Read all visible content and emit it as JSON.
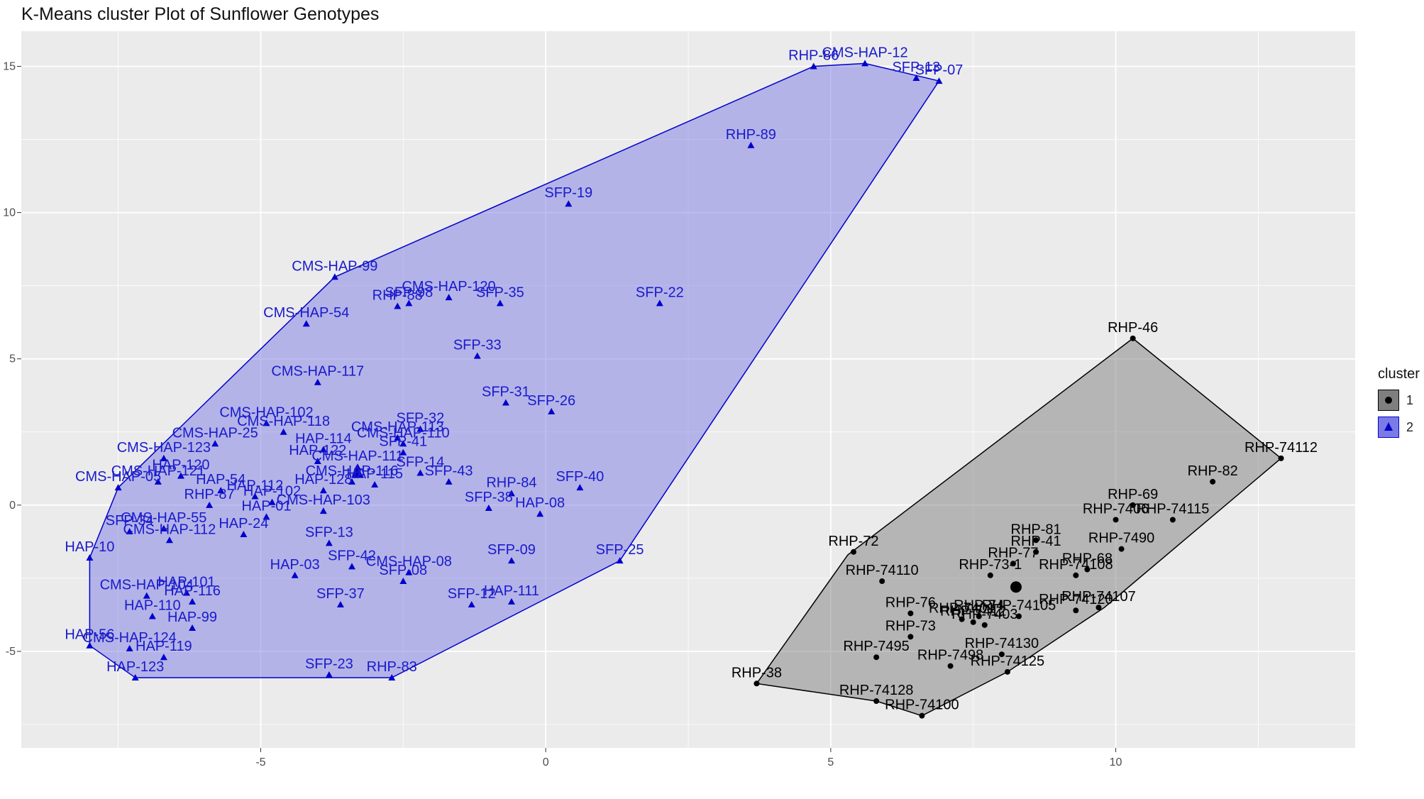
{
  "chart_data": {
    "type": "scatter",
    "title": "K-Means cluster Plot of Sunflower Genotypes",
    "xlabel": "",
    "ylabel": "",
    "xlim": [
      -9.2,
      14.2
    ],
    "ylim": [
      -8.3,
      16.2
    ],
    "x_ticks": [
      -5,
      0,
      5,
      10
    ],
    "y_ticks": [
      -5,
      0,
      5,
      10,
      15
    ],
    "grid": true,
    "legend_title": "cluster",
    "legend_position": "right",
    "series": [
      {
        "name": "1",
        "marker": "circle",
        "color": "#000000",
        "fill": "#7f7f7f",
        "label_color": "#000000",
        "hull": [
          [
            10.3,
            5.7
          ],
          [
            12.9,
            1.6
          ],
          [
            9.8,
            -3.5
          ],
          [
            8.1,
            -5.7
          ],
          [
            6.6,
            -7.2
          ],
          [
            5.8,
            -6.7
          ],
          [
            3.7,
            -6.1
          ],
          [
            5.3,
            -1.7
          ]
        ],
        "points": [
          {
            "label": "RHP-46",
            "x": 10.3,
            "y": 5.7
          },
          {
            "label": "RHP-74112",
            "x": 12.9,
            "y": 1.6
          },
          {
            "label": "RHP-82",
            "x": 11.7,
            "y": 0.8
          },
          {
            "label": "RHP-69",
            "x": 10.3,
            "y": 0.0
          },
          {
            "label": "RHP-7406",
            "x": 10.0,
            "y": -0.5
          },
          {
            "label": "RHP-74115",
            "x": 11.0,
            "y": -0.5
          },
          {
            "label": "RHP-7490",
            "x": 10.1,
            "y": -1.5
          },
          {
            "label": "RHP-81",
            "x": 8.6,
            "y": -1.2
          },
          {
            "label": "RHP-41",
            "x": 8.6,
            "y": -1.6
          },
          {
            "label": "RHP-77",
            "x": 8.2,
            "y": -2.0
          },
          {
            "label": "RHP-73-1",
            "x": 7.8,
            "y": -2.4
          },
          {
            "label": "RHP-68",
            "x": 9.5,
            "y": -2.2
          },
          {
            "label": "RHP-74108",
            "x": 9.3,
            "y": -2.4
          },
          {
            "label": "RHP-72",
            "x": 5.4,
            "y": -1.6
          },
          {
            "label": "RHP-74110",
            "x": 5.9,
            "y": -2.6
          },
          {
            "label": "RHP-74107",
            "x": 9.7,
            "y": -3.5
          },
          {
            "label": "RHP-74120",
            "x": 9.3,
            "y": -3.6
          },
          {
            "label": "RHP-74105",
            "x": 8.3,
            "y": -3.8
          },
          {
            "label": "RHP-76",
            "x": 6.4,
            "y": -3.7
          },
          {
            "label": "RHP-7401",
            "x": 7.3,
            "y": -3.9
          },
          {
            "label": "RHP-7412",
            "x": 7.5,
            "y": -4.0
          },
          {
            "label": "RHP-74",
            "x": 7.6,
            "y": -3.8
          },
          {
            "label": "RHP-7403",
            "x": 7.7,
            "y": -4.1
          },
          {
            "label": "RHP-73",
            "x": 6.4,
            "y": -4.5
          },
          {
            "label": "RHP-7495",
            "x": 5.8,
            "y": -5.2
          },
          {
            "label": "RHP-7498",
            "x": 7.1,
            "y": -5.5
          },
          {
            "label": "RHP-74130",
            "x": 8.0,
            "y": -5.1
          },
          {
            "label": "RHP-74125",
            "x": 8.1,
            "y": -5.7
          },
          {
            "label": "RHP-38",
            "x": 3.7,
            "y": -6.1
          },
          {
            "label": "RHP-74128",
            "x": 5.8,
            "y": -6.7
          },
          {
            "label": "RHP-74100",
            "x": 6.6,
            "y": -7.2
          }
        ]
      },
      {
        "name": "2",
        "marker": "triangle",
        "color": "#0000cc",
        "fill": "#7b7be6",
        "label_color": "#1a1acc",
        "hull": [
          [
            4.7,
            15.0
          ],
          [
            5.6,
            15.1
          ],
          [
            6.9,
            14.5
          ],
          [
            1.3,
            -1.9
          ],
          [
            -2.7,
            -5.9
          ],
          [
            -7.2,
            -5.9
          ],
          [
            -8.0,
            -4.8
          ],
          [
            -8.0,
            -1.8
          ],
          [
            -7.5,
            0.6
          ],
          [
            -3.7,
            7.8
          ]
        ],
        "points": [
          {
            "label": "RHP-86",
            "x": 4.7,
            "y": 15.0
          },
          {
            "label": "CMS-HAP-12",
            "x": 5.6,
            "y": 15.1
          },
          {
            "label": "SFP-13",
            "x": 6.5,
            "y": 14.6
          },
          {
            "label": "SFP-07",
            "x": 6.9,
            "y": 14.5
          },
          {
            "label": "RHP-89",
            "x": 3.6,
            "y": 12.3
          },
          {
            "label": "SFP-19",
            "x": 0.4,
            "y": 10.3
          },
          {
            "label": "CMS-HAP-99",
            "x": -3.7,
            "y": 7.8
          },
          {
            "label": "RHP-88",
            "x": -2.6,
            "y": 6.8
          },
          {
            "label": "SFP-98",
            "x": -2.4,
            "y": 6.9
          },
          {
            "label": "CMS-HAP-120",
            "x": -1.7,
            "y": 7.1
          },
          {
            "label": "SFP-35",
            "x": -0.8,
            "y": 6.9
          },
          {
            "label": "SFP-22",
            "x": 2.0,
            "y": 6.9
          },
          {
            "label": "CMS-HAP-54",
            "x": -4.2,
            "y": 6.2
          },
          {
            "label": "SFP-33",
            "x": -1.2,
            "y": 5.1
          },
          {
            "label": "CMS-HAP-117",
            "x": -4.0,
            "y": 4.2
          },
          {
            "label": "SFP-31",
            "x": -0.7,
            "y": 3.5
          },
          {
            "label": "SFP-26",
            "x": 0.1,
            "y": 3.2
          },
          {
            "label": "CMS-HAP-102",
            "x": -4.9,
            "y": 2.8
          },
          {
            "label": "CMS-HAP-118",
            "x": -4.6,
            "y": 2.5
          },
          {
            "label": "CMS-HAP-25",
            "x": -5.8,
            "y": 2.1
          },
          {
            "label": "SFP-32",
            "x": -2.2,
            "y": 2.6
          },
          {
            "label": "CMS-HAP-113",
            "x": -2.6,
            "y": 2.3
          },
          {
            "label": "CMS-HAP-110",
            "x": -2.5,
            "y": 2.1
          },
          {
            "label": "SFP-41",
            "x": -2.5,
            "y": 1.8
          },
          {
            "label": "HAP-114",
            "x": -3.9,
            "y": 1.9
          },
          {
            "label": "HAP-122",
            "x": -4.0,
            "y": 1.5
          },
          {
            "label": "CMS-HAP-123",
            "x": -6.7,
            "y": 1.6
          },
          {
            "label": "CMS-HAP-111",
            "x": -3.3,
            "y": 1.3
          },
          {
            "label": "SFP-14",
            "x": -2.2,
            "y": 1.1
          },
          {
            "label": "SFP-43",
            "x": -1.7,
            "y": 0.8
          },
          {
            "label": "HAP-120",
            "x": -6.4,
            "y": 1.0
          },
          {
            "label": "CMS-HAP-121",
            "x": -6.8,
            "y": 0.8
          },
          {
            "label": "CMS-HAP-05",
            "x": -7.5,
            "y": 0.6
          },
          {
            "label": "CMS-HAP-116",
            "x": -3.4,
            "y": 0.8
          },
          {
            "label": "HAP-115",
            "x": -3.0,
            "y": 0.7
          },
          {
            "label": "HAP-128",
            "x": -3.9,
            "y": 0.5
          },
          {
            "label": "RHP-84",
            "x": -0.6,
            "y": 0.4
          },
          {
            "label": "SFP-40",
            "x": 0.6,
            "y": 0.6
          },
          {
            "label": "HAP-54",
            "x": -5.7,
            "y": 0.5
          },
          {
            "label": "HAP-112",
            "x": -5.1,
            "y": 0.3
          },
          {
            "label": "HAP-102",
            "x": -4.8,
            "y": 0.1
          },
          {
            "label": "RHP-87",
            "x": -5.9,
            "y": 0.0
          },
          {
            "label": "SFP-38",
            "x": -1.0,
            "y": -0.1
          },
          {
            "label": "HAP-08",
            "x": -0.1,
            "y": -0.3
          },
          {
            "label": "CMS-HAP-103",
            "x": -3.9,
            "y": -0.2
          },
          {
            "label": "HAP-01",
            "x": -4.9,
            "y": -0.4
          },
          {
            "label": "SFP-34",
            "x": -7.3,
            "y": -0.9
          },
          {
            "label": "CMS-HAP-55",
            "x": -6.7,
            "y": -0.8
          },
          {
            "label": "HAP-24",
            "x": -5.3,
            "y": -1.0
          },
          {
            "label": "CMS-HAP-112",
            "x": -6.6,
            "y": -1.2
          },
          {
            "label": "SFP-13",
            "x": -3.8,
            "y": -1.3
          },
          {
            "label": "HAP-10",
            "x": -8.0,
            "y": -1.8
          },
          {
            "label": "SFP-42",
            "x": -3.4,
            "y": -2.1
          },
          {
            "label": "HAP-03",
            "x": -4.4,
            "y": -2.4
          },
          {
            "label": "CMS-HAP-08",
            "x": -2.4,
            "y": -2.3
          },
          {
            "label": "SFP-08",
            "x": -2.5,
            "y": -2.6
          },
          {
            "label": "SFP-09",
            "x": -0.6,
            "y": -1.9
          },
          {
            "label": "SFP-25",
            "x": 1.3,
            "y": -1.9
          },
          {
            "label": "CMS-HAP-104",
            "x": -7.0,
            "y": -3.1
          },
          {
            "label": "HAP-101",
            "x": -6.3,
            "y": -3.0
          },
          {
            "label": "HAP-116",
            "x": -6.2,
            "y": -3.3
          },
          {
            "label": "SFP-37",
            "x": -3.6,
            "y": -3.4
          },
          {
            "label": "SFP-12",
            "x": -1.3,
            "y": -3.4
          },
          {
            "label": "HAP-111",
            "x": -0.6,
            "y": -3.3
          },
          {
            "label": "HAP-110",
            "x": -6.9,
            "y": -3.8
          },
          {
            "label": "HAP-99",
            "x": -6.2,
            "y": -4.2
          },
          {
            "label": "HAP-56",
            "x": -8.0,
            "y": -4.8
          },
          {
            "label": "CMS-HAP-124",
            "x": -7.3,
            "y": -4.9
          },
          {
            "label": "HAP-119",
            "x": -6.7,
            "y": -5.2
          },
          {
            "label": "HAP-123",
            "x": -7.2,
            "y": -5.9
          },
          {
            "label": "SFP-23",
            "x": -3.8,
            "y": -5.8
          },
          {
            "label": "RHP-83",
            "x": -2.7,
            "y": -5.9
          }
        ]
      }
    ]
  }
}
